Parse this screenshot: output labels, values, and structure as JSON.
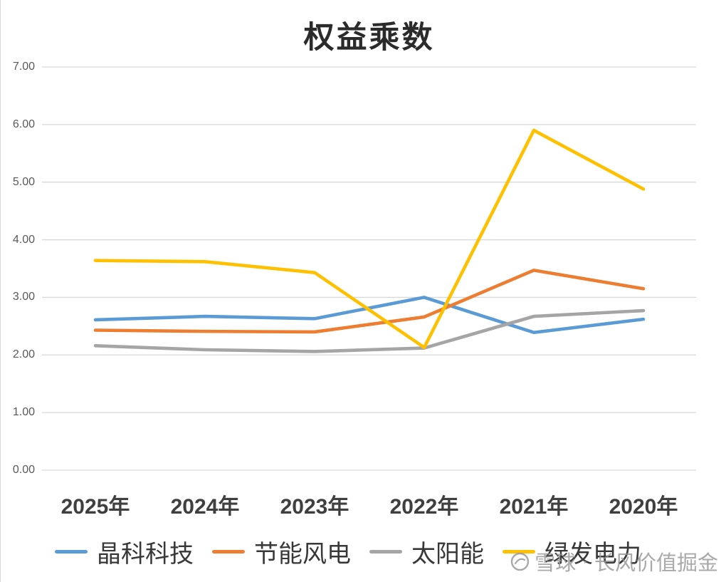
{
  "chart_data": {
    "type": "line",
    "title": "权益乘数",
    "categories": [
      "2025年",
      "2024年",
      "2023年",
      "2022年",
      "2021年",
      "2020年"
    ],
    "series": [
      {
        "name": "晶科科技",
        "color": "#5B9BD5",
        "values": [
          2.61,
          2.67,
          2.63,
          3.0,
          2.39,
          2.62
        ]
      },
      {
        "name": "节能风电",
        "color": "#ED7D31",
        "values": [
          2.43,
          2.41,
          2.4,
          2.66,
          3.47,
          3.15
        ]
      },
      {
        "name": "太阳能",
        "color": "#A5A5A5",
        "values": [
          2.16,
          2.09,
          2.06,
          2.12,
          2.67,
          2.77
        ]
      },
      {
        "name": "绿发电力",
        "color": "#FFC000",
        "values": [
          3.64,
          3.62,
          3.43,
          2.13,
          5.9,
          4.88
        ]
      }
    ],
    "ylim": [
      0,
      7
    ],
    "ytick_labels": [
      "0.00",
      "1.00",
      "2.00",
      "3.00",
      "4.00",
      "5.00",
      "6.00",
      "7.00"
    ],
    "grid": true,
    "gridline_color": "#D9D9D9",
    "legend_position": "bottom"
  },
  "watermark": {
    "brand": "雪球",
    "separator": "·",
    "name": "长风价值掘金"
  }
}
